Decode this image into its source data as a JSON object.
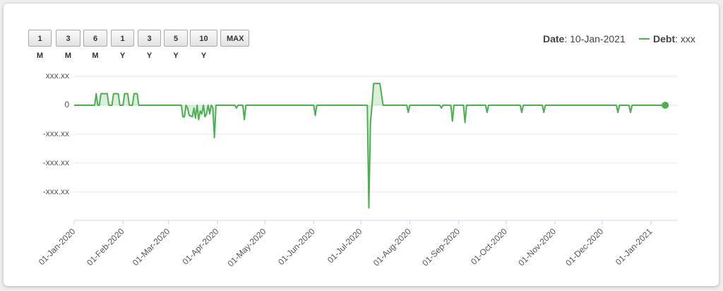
{
  "buttons": [
    "1 M",
    "3 M",
    "6 M",
    "1 Y",
    "3 Y",
    "5 Y",
    "10 Y",
    "MAX"
  ],
  "chart_data": {
    "type": "line",
    "date_label": "Date",
    "date_value": ": 10-Jan-2021",
    "x": [
      "2020-01-01",
      "2020-01-14",
      "2020-01-15",
      "2020-01-16",
      "2020-01-17",
      "2020-01-18",
      "2020-01-22",
      "2020-01-23",
      "2020-01-25",
      "2020-01-26",
      "2020-01-29",
      "2020-01-30",
      "2020-02-01",
      "2020-02-02",
      "2020-02-04",
      "2020-02-05",
      "2020-02-07",
      "2020-02-08",
      "2020-02-10",
      "2020-02-11",
      "2020-03-09",
      "2020-03-10",
      "2020-03-11",
      "2020-03-12",
      "2020-03-13",
      "2020-03-14",
      "2020-03-16",
      "2020-03-17",
      "2020-03-18",
      "2020-03-19",
      "2020-03-20",
      "2020-03-21",
      "2020-03-22",
      "2020-03-23",
      "2020-03-24",
      "2020-03-25",
      "2020-03-26",
      "2020-03-27",
      "2020-03-28",
      "2020-03-29",
      "2020-03-30",
      "2020-03-31",
      "2020-04-12",
      "2020-04-13",
      "2020-04-14",
      "2020-04-17",
      "2020-04-18",
      "2020-04-19",
      "2020-06-01",
      "2020-06-02",
      "2020-06-03",
      "2020-07-05",
      "2020-07-06",
      "2020-07-07",
      "2020-07-08",
      "2020-07-09",
      "2020-07-13",
      "2020-07-15",
      "2020-07-30",
      "2020-07-31",
      "2020-08-01",
      "2020-08-20",
      "2020-08-21",
      "2020-08-22",
      "2020-08-27",
      "2020-08-28",
      "2020-08-29",
      "2020-09-04",
      "2020-09-05",
      "2020-09-06",
      "2020-09-18",
      "2020-09-19",
      "2020-09-20",
      "2020-10-10",
      "2020-10-11",
      "2020-10-12",
      "2020-10-24",
      "2020-10-25",
      "2020-10-26",
      "2020-12-10",
      "2020-12-11",
      "2020-12-12",
      "2020-12-18",
      "2020-12-19",
      "2020-12-20",
      "2021-01-10"
    ],
    "series": [
      {
        "name": "Debt",
        "legend_value": ": xxx",
        "color": "#4caf50",
        "values": [
          0,
          0,
          0.4,
          0,
          0,
          0.4,
          0.4,
          0,
          0,
          0.4,
          0.4,
          0,
          0,
          0.4,
          0.4,
          0,
          0,
          0.4,
          0.4,
          0,
          0,
          -0.4,
          -0.4,
          0,
          -0.1,
          -0.35,
          -0.4,
          -0.1,
          -0.45,
          0,
          -0.5,
          -0.2,
          -0.3,
          0,
          -0.4,
          -0.3,
          0,
          -0.3,
          0,
          -0.1,
          -1.12,
          0,
          0,
          -0.1,
          0,
          0,
          -0.5,
          0,
          0,
          -0.35,
          0,
          0,
          -3.55,
          -0.6,
          0,
          0.75,
          0.75,
          0,
          0,
          -0.25,
          0,
          0,
          -0.1,
          0,
          0,
          -0.55,
          0,
          0,
          -0.6,
          0,
          0,
          -0.25,
          0,
          0,
          -0.25,
          0,
          0,
          -0.25,
          0,
          0,
          -0.25,
          0,
          0,
          -0.25,
          0,
          0
        ]
      }
    ],
    "xlim": [
      "2020-01-01",
      "2021-01-18"
    ],
    "xticks": [
      {
        "value": "2020-01-01",
        "label": "01-Jan-2020"
      },
      {
        "value": "2020-02-01",
        "label": "01-Feb-2020"
      },
      {
        "value": "2020-03-01",
        "label": "01-Mar-2020"
      },
      {
        "value": "2020-04-01",
        "label": "01-Apr-2020"
      },
      {
        "value": "2020-05-01",
        "label": "01-May-2020"
      },
      {
        "value": "2020-06-01",
        "label": "01-Jun-2020"
      },
      {
        "value": "2020-07-01",
        "label": "01-Jul-2020"
      },
      {
        "value": "2020-08-01",
        "label": "01-Aug-2020"
      },
      {
        "value": "2020-09-01",
        "label": "01-Sep-2020"
      },
      {
        "value": "2020-10-01",
        "label": "01-Oct-2020"
      },
      {
        "value": "2020-11-01",
        "label": "01-Nov-2020"
      },
      {
        "value": "2020-12-01",
        "label": "01-Dec-2020"
      },
      {
        "value": "2021-01-01",
        "label": "01-Jan-2021"
      }
    ],
    "ylim": [
      -3.98,
      1
    ],
    "yticks": [
      {
        "value": 1,
        "label": "xxx.xx"
      },
      0,
      {
        "value": -1,
        "label": "-xxx.xx"
      },
      {
        "value": -2,
        "label": "-xxx.xx"
      },
      {
        "value": -3,
        "label": "-xxx.xx"
      }
    ],
    "grid": true
  }
}
